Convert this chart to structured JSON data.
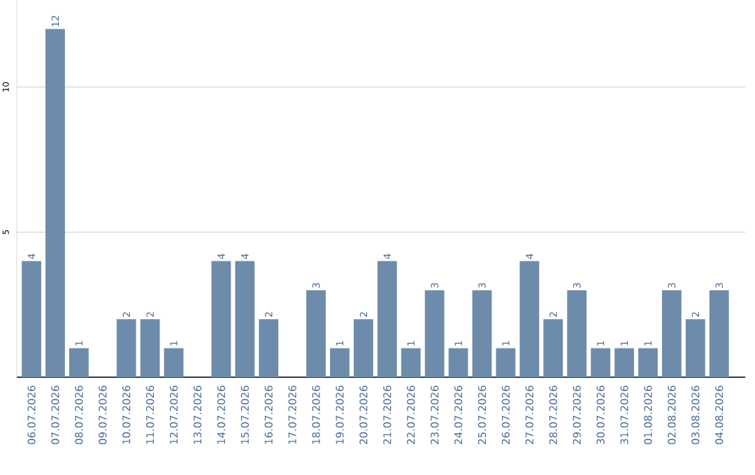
{
  "chart_data": {
    "type": "bar",
    "categories": [
      "06.07.2026",
      "07.07.2026",
      "08.07.2026",
      "09.07.2026",
      "10.07.2026",
      "11.07.2026",
      "12.07.2026",
      "13.07.2026",
      "14.07.2026",
      "15.07.2026",
      "16.07.2026",
      "17.07.2026",
      "18.07.2026",
      "19.07.2026",
      "20.07.2026",
      "21.07.2026",
      "22.07.2026",
      "23.07.2026",
      "24.07.2026",
      "25.07.2026",
      "26.07.2026",
      "27.07.2026",
      "28.07.2026",
      "29.07.2026",
      "30.07.2026",
      "31.07.2026",
      "01.08.2026",
      "02.08.2026",
      "03.08.2026",
      "04.08.2026"
    ],
    "values": [
      4,
      12,
      1,
      0,
      2,
      2,
      1,
      0,
      4,
      4,
      2,
      0,
      3,
      1,
      2,
      4,
      1,
      3,
      1,
      3,
      1,
      4,
      2,
      3,
      1,
      1,
      1,
      3,
      2,
      3
    ],
    "value_labels": [
      "4",
      "12",
      "1",
      null,
      "2",
      "2",
      "1",
      null,
      "4",
      "4",
      "2",
      null,
      "3",
      "1",
      "2",
      "4",
      "1",
      "3",
      "1",
      "3",
      "1",
      "4",
      "2",
      "3",
      "1",
      "1",
      "1",
      "3",
      "2",
      "3"
    ],
    "color": "#6d8cab",
    "ylim": [
      0,
      13
    ],
    "yticks": [
      {
        "value": 0,
        "label": null
      },
      5,
      10
    ],
    "grid": "y"
  }
}
